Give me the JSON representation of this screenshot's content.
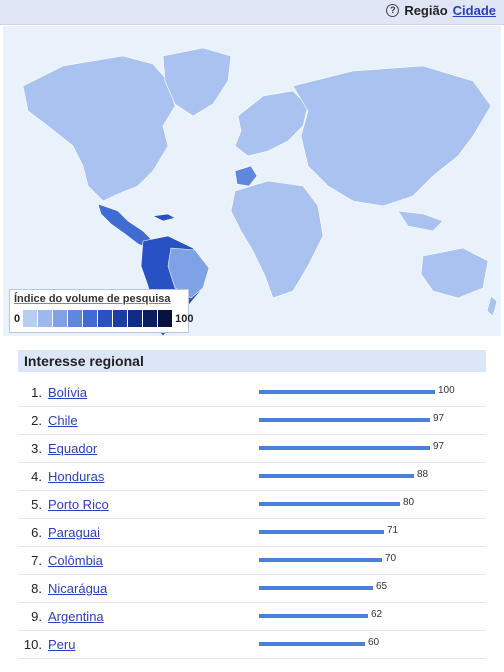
{
  "header": {
    "help_icon": "question-icon",
    "region_label": "Região",
    "city_link": "Cidade"
  },
  "legend": {
    "title": "Índice do volume de pesquisa",
    "min": "0",
    "max": "100",
    "colors": [
      "#b7cdf4",
      "#9db8ee",
      "#7fa1e6",
      "#5f87dd",
      "#3f6bd3",
      "#2852c4",
      "#1a3ea6",
      "#102d85",
      "#0a1d5c",
      "#071240"
    ]
  },
  "map": {
    "base_color": "#a9c2f0",
    "ocean_color": "#e9f1fb"
  },
  "section": {
    "title": "Interesse regional"
  },
  "chart_data": {
    "type": "bar",
    "categories": [
      "Bolívia",
      "Chile",
      "Equador",
      "Honduras",
      "Porto Rico",
      "Paraguai",
      "Colômbia",
      "Nicarágua",
      "Argentina",
      "Peru"
    ],
    "values": [
      100,
      97,
      97,
      88,
      80,
      71,
      70,
      65,
      62,
      60
    ],
    "ranks": [
      "1.",
      "2.",
      "3.",
      "4.",
      "5.",
      "6.",
      "7.",
      "8.",
      "9.",
      "10."
    ],
    "bar_color": "#4a7fdc",
    "xlim": [
      0,
      100
    ]
  }
}
